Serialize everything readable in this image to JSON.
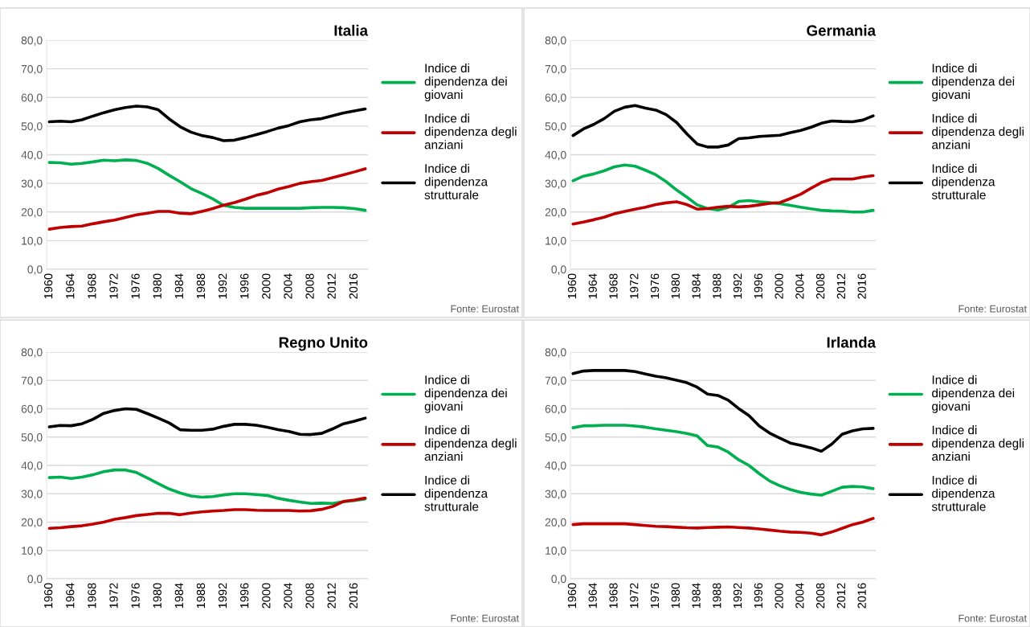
{
  "chart_data": [
    {
      "type": "line",
      "title": "Italia",
      "x": [
        1960,
        1962,
        1964,
        1966,
        1968,
        1970,
        1972,
        1974,
        1976,
        1978,
        1980,
        1982,
        1984,
        1986,
        1988,
        1990,
        1992,
        1994,
        1996,
        1998,
        2000,
        2002,
        2004,
        2006,
        2008,
        2010,
        2012,
        2014,
        2016,
        2018
      ],
      "xlim": [
        1959.5,
        2018.5
      ],
      "xticks": [
        1960,
        1964,
        1968,
        1972,
        1976,
        1980,
        1984,
        1988,
        1992,
        1996,
        2000,
        2004,
        2008,
        2012,
        2016
      ],
      "ylim": [
        0,
        80
      ],
      "yticks": [
        {
          "value": 0,
          "label": "0,0"
        },
        {
          "value": 10,
          "label": "10,0"
        },
        {
          "value": 20,
          "label": "20,0"
        },
        {
          "value": 30,
          "label": "30,0"
        },
        {
          "value": 40,
          "label": "40,0"
        },
        {
          "value": 50,
          "label": "50,0"
        },
        {
          "value": 60,
          "label": "60,0"
        },
        {
          "value": 70,
          "label": "70,0"
        },
        {
          "value": 80,
          "label": "80,0"
        }
      ],
      "grid": "y",
      "legend": "right",
      "marker": "none",
      "line_style": "solid",
      "annotations": [
        "Fonte: Eurostat"
      ],
      "series": [
        {
          "name": "Indice di\ndipendenza dei\ngiovani",
          "color": "#00b050",
          "values": [
            37.3,
            37.2,
            36.7,
            37.0,
            37.5,
            38.1,
            37.9,
            38.2,
            38.0,
            37.0,
            35.2,
            32.8,
            30.6,
            28.2,
            26.5,
            24.6,
            22.3,
            21.6,
            21.3,
            21.3,
            21.3,
            21.3,
            21.3,
            21.3,
            21.5,
            21.6,
            21.6,
            21.5,
            21.2,
            20.6
          ]
        },
        {
          "name": "Indice di\ndipendenza degli\nanziani",
          "color": "#c00000",
          "values": [
            14.0,
            14.6,
            14.9,
            15.1,
            15.9,
            16.6,
            17.2,
            18.1,
            19.0,
            19.6,
            20.2,
            20.2,
            19.6,
            19.4,
            20.2,
            21.2,
            22.4,
            23.3,
            24.5,
            25.8,
            26.7,
            28.0,
            28.9,
            30.0,
            30.6,
            31.0,
            32.0,
            33.0,
            34.0,
            35.1
          ]
        },
        {
          "name": "Indice di\ndipendenza\nstrutturale",
          "color": "#000000",
          "values": [
            51.5,
            51.7,
            51.5,
            52.2,
            53.5,
            54.7,
            55.7,
            56.5,
            57.0,
            56.7,
            55.7,
            52.5,
            49.8,
            47.9,
            46.7,
            46.0,
            44.9,
            45.1,
            46.0,
            47.0,
            48.1,
            49.3,
            50.2,
            51.5,
            52.2,
            52.6,
            53.6,
            54.6,
            55.3,
            56.0
          ]
        }
      ]
    },
    {
      "type": "line",
      "title": "Germania",
      "x": [
        1960,
        1962,
        1964,
        1966,
        1968,
        1970,
        1972,
        1974,
        1976,
        1978,
        1980,
        1982,
        1984,
        1986,
        1988,
        1990,
        1992,
        1994,
        1996,
        1998,
        2000,
        2002,
        2004,
        2006,
        2008,
        2010,
        2012,
        2014,
        2016,
        2018
      ],
      "xlim": [
        1959.5,
        2018.5
      ],
      "xticks": [
        1960,
        1964,
        1968,
        1972,
        1976,
        1980,
        1984,
        1988,
        1992,
        1996,
        2000,
        2004,
        2008,
        2012,
        2016
      ],
      "ylim": [
        0,
        80
      ],
      "yticks": [
        {
          "value": 0,
          "label": "0,0"
        },
        {
          "value": 10,
          "label": "10,0"
        },
        {
          "value": 20,
          "label": "20,0"
        },
        {
          "value": 30,
          "label": "30,0"
        },
        {
          "value": 40,
          "label": "40,0"
        },
        {
          "value": 50,
          "label": "50,0"
        },
        {
          "value": 60,
          "label": "60,0"
        },
        {
          "value": 70,
          "label": "70,0"
        },
        {
          "value": 80,
          "label": "80,0"
        }
      ],
      "grid": "y",
      "legend": "right",
      "marker": "none",
      "line_style": "solid",
      "annotations": [
        "Fonte: Eurostat"
      ],
      "series": [
        {
          "name": "Indice di\ndipendenza dei\ngiovani",
          "color": "#00b050",
          "values": [
            30.9,
            32.5,
            33.3,
            34.4,
            35.8,
            36.4,
            36.0,
            34.6,
            33.0,
            30.6,
            27.7,
            25.2,
            22.5,
            21.2,
            20.7,
            21.6,
            23.7,
            24.0,
            23.6,
            23.3,
            22.9,
            22.3,
            21.7,
            21.1,
            20.6,
            20.4,
            20.3,
            20.0,
            20.0,
            20.6
          ]
        },
        {
          "name": "Indice di\ndipendenza degli\nanziani",
          "color": "#c00000",
          "values": [
            15.8,
            16.5,
            17.3,
            18.2,
            19.4,
            20.2,
            21.0,
            21.7,
            22.6,
            23.2,
            23.6,
            22.6,
            21.0,
            21.2,
            21.7,
            22.0,
            21.8,
            22.0,
            22.5,
            23.0,
            23.3,
            24.7,
            26.2,
            28.3,
            30.3,
            31.5,
            31.5,
            31.5,
            32.2,
            32.7
          ]
        },
        {
          "name": "Indice di\ndipendenza\nstrutturale",
          "color": "#000000",
          "values": [
            46.7,
            49.0,
            50.6,
            52.6,
            55.2,
            56.6,
            57.2,
            56.3,
            55.6,
            54.0,
            51.3,
            47.3,
            43.7,
            42.7,
            42.7,
            43.4,
            45.6,
            45.9,
            46.4,
            46.6,
            46.8,
            47.7,
            48.5,
            49.6,
            51.0,
            51.8,
            51.6,
            51.5,
            52.1,
            53.6
          ]
        }
      ]
    },
    {
      "type": "line",
      "title": "Regno Unito",
      "x": [
        1960,
        1962,
        1964,
        1966,
        1968,
        1970,
        1972,
        1974,
        1976,
        1978,
        1980,
        1982,
        1984,
        1986,
        1988,
        1990,
        1992,
        1994,
        1996,
        1998,
        2000,
        2002,
        2004,
        2006,
        2008,
        2010,
        2012,
        2014,
        2016,
        2018
      ],
      "xlim": [
        1959.5,
        2018.5
      ],
      "xticks": [
        1960,
        1964,
        1968,
        1972,
        1976,
        1980,
        1984,
        1988,
        1992,
        1996,
        2000,
        2004,
        2008,
        2012,
        2016
      ],
      "ylim": [
        0,
        80
      ],
      "yticks": [
        {
          "value": 0,
          "label": "0,0"
        },
        {
          "value": 10,
          "label": "10,0"
        },
        {
          "value": 20,
          "label": "20,0"
        },
        {
          "value": 30,
          "label": "30,0"
        },
        {
          "value": 40,
          "label": "40,0"
        },
        {
          "value": 50,
          "label": "50,0"
        },
        {
          "value": 60,
          "label": "60,0"
        },
        {
          "value": 70,
          "label": "70,0"
        },
        {
          "value": 80,
          "label": "80,0"
        }
      ],
      "grid": "y",
      "legend": "right",
      "marker": "none",
      "line_style": "solid",
      "annotations": [
        "Fonte: Eurostat"
      ],
      "series": [
        {
          "name": "Indice di\ndipendenza dei\ngiovani",
          "color": "#00b050",
          "values": [
            35.7,
            35.9,
            35.4,
            35.9,
            36.7,
            37.8,
            38.4,
            38.4,
            37.5,
            35.6,
            33.6,
            31.7,
            30.3,
            29.2,
            28.8,
            29.0,
            29.6,
            30.0,
            30.0,
            29.7,
            29.4,
            28.4,
            27.7,
            27.1,
            26.6,
            26.7,
            26.6,
            27.2,
            27.6,
            28.2
          ]
        },
        {
          "name": "Indice di\ndipendenza degli\nanziani",
          "color": "#c00000",
          "values": [
            17.8,
            18.0,
            18.4,
            18.7,
            19.3,
            20.0,
            21.0,
            21.6,
            22.3,
            22.7,
            23.1,
            23.1,
            22.6,
            23.2,
            23.6,
            23.9,
            24.1,
            24.4,
            24.4,
            24.2,
            24.1,
            24.1,
            24.1,
            23.9,
            24.0,
            24.5,
            25.5,
            27.3,
            27.8,
            28.5
          ]
        },
        {
          "name": "Indice di\ndipendenza\nstrutturale",
          "color": "#000000",
          "values": [
            53.6,
            54.1,
            54.0,
            54.7,
            56.3,
            58.4,
            59.4,
            60.0,
            59.8,
            58.3,
            56.7,
            55.0,
            52.6,
            52.4,
            52.4,
            52.8,
            53.8,
            54.5,
            54.5,
            54.2,
            53.5,
            52.6,
            52.0,
            51.0,
            50.9,
            51.3,
            52.9,
            54.7,
            55.6,
            56.7
          ]
        }
      ]
    },
    {
      "type": "line",
      "title": "Irlanda",
      "x": [
        1960,
        1962,
        1964,
        1966,
        1968,
        1970,
        1972,
        1974,
        1976,
        1978,
        1980,
        1982,
        1984,
        1986,
        1988,
        1990,
        1992,
        1994,
        1996,
        1998,
        2000,
        2002,
        2004,
        2006,
        2008,
        2010,
        2012,
        2014,
        2016,
        2018
      ],
      "xlim": [
        1959.5,
        2018.5
      ],
      "xticks": [
        1960,
        1964,
        1968,
        1972,
        1976,
        1980,
        1984,
        1988,
        1992,
        1996,
        2000,
        2004,
        2008,
        2012,
        2016
      ],
      "ylim": [
        0,
        80
      ],
      "yticks": [
        {
          "value": 0,
          "label": "0,0"
        },
        {
          "value": 10,
          "label": "10,0"
        },
        {
          "value": 20,
          "label": "20,0"
        },
        {
          "value": 30,
          "label": "30,0"
        },
        {
          "value": 40,
          "label": "40,0"
        },
        {
          "value": 50,
          "label": "50,0"
        },
        {
          "value": 60,
          "label": "60,0"
        },
        {
          "value": 70,
          "label": "70,0"
        },
        {
          "value": 80,
          "label": "80,0"
        }
      ],
      "grid": "y",
      "legend": "right",
      "marker": "none",
      "line_style": "solid",
      "annotations": [
        "Fonte: Eurostat"
      ],
      "series": [
        {
          "name": "Indice di\ndipendenza dei\ngiovani",
          "color": "#00b050",
          "values": [
            53.3,
            54.0,
            54.0,
            54.2,
            54.2,
            54.2,
            53.9,
            53.5,
            52.9,
            52.4,
            51.9,
            51.3,
            50.4,
            47.0,
            46.5,
            44.7,
            42.0,
            40.0,
            37.1,
            34.5,
            32.8,
            31.5,
            30.5,
            29.9,
            29.5,
            30.9,
            32.3,
            32.6,
            32.4,
            31.8
          ]
        },
        {
          "name": "Indice di\ndipendenza degli\nanziani",
          "color": "#c00000",
          "values": [
            19.1,
            19.4,
            19.4,
            19.4,
            19.4,
            19.4,
            19.1,
            18.8,
            18.5,
            18.4,
            18.2,
            18.0,
            17.9,
            18.1,
            18.2,
            18.3,
            18.1,
            17.9,
            17.6,
            17.2,
            16.8,
            16.5,
            16.4,
            16.1,
            15.5,
            16.5,
            17.8,
            19.1,
            20.0,
            21.3
          ]
        },
        {
          "name": "Indice di\ndipendenza\nstrutturale",
          "color": "#000000",
          "values": [
            72.4,
            73.3,
            73.5,
            73.5,
            73.5,
            73.5,
            73.1,
            72.3,
            71.5,
            70.9,
            70.1,
            69.2,
            67.6,
            65.2,
            64.7,
            63.0,
            60.1,
            57.6,
            53.9,
            51.4,
            49.6,
            47.9,
            47.1,
            46.2,
            45.0,
            47.5,
            51.0,
            52.2,
            52.9,
            53.1
          ]
        }
      ]
    }
  ]
}
